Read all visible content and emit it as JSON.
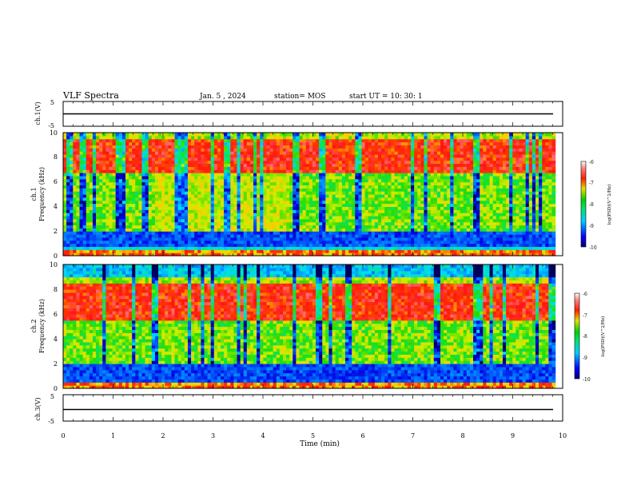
{
  "header": {
    "title": "VLF Spectra",
    "date": "Jan. 5 , 2024",
    "station": "station= MOS",
    "start_ut": "start UT =  10: 30: 1"
  },
  "chart_data": [
    {
      "type": "line",
      "panel": "ch1-waveform",
      "ylabel": "ch.1(V)",
      "ylim": [
        -5,
        5
      ],
      "y_ticks": [
        "5",
        "-5"
      ],
      "xlim": [
        0,
        10
      ],
      "level": 0
    },
    {
      "type": "heatmap",
      "panel": "ch1-spectrogram",
      "ylabel_top": "ch.1",
      "ylabel": "Frequency (kHz)",
      "ylim": [
        0,
        10
      ],
      "y_ticks": [
        "0",
        "2",
        "4",
        "6",
        "8",
        "10"
      ],
      "xlim": [
        0,
        10
      ],
      "data_end_min": 9.85,
      "colorbar": {
        "label": "log(PSD)(V^2/Hz)",
        "range": [
          -10,
          -6
        ],
        "ticks": [
          "-6",
          "-7",
          "-8",
          "-9",
          "-10"
        ]
      },
      "features": {
        "band_intense_khz": [
          6.8,
          9.5
        ],
        "green_region_min": [
          1.8,
          4.5
        ],
        "lower_bands_khz": [
          0.8,
          1.9
        ]
      }
    },
    {
      "type": "heatmap",
      "panel": "ch2-spectrogram",
      "ylabel_top": "ch.2",
      "ylabel": "Frequency (kHz)",
      "ylim": [
        0,
        10
      ],
      "y_ticks": [
        "0",
        "2",
        "4",
        "6",
        "8",
        "10"
      ],
      "xlim": [
        0,
        10
      ],
      "data_end_min": 9.85,
      "colorbar": {
        "label": "log(PSD)(V^2/Hz)",
        "range": [
          -10,
          -6
        ],
        "ticks": [
          "-6",
          "-7",
          "-8",
          "-9",
          "-10"
        ]
      },
      "features": {
        "band_intense_khz": [
          5.5,
          8.5
        ],
        "lower_bands_khz": [
          0.2,
          1.9
        ]
      }
    },
    {
      "type": "line",
      "panel": "ch3-waveform",
      "ylabel": "ch.3(V)",
      "ylim": [
        -5,
        5
      ],
      "y_ticks": [
        "5",
        "-5"
      ],
      "xlim": [
        0,
        10
      ],
      "level": 0
    }
  ],
  "x_axis": {
    "label": "Time (min)",
    "ticks": [
      "0",
      "1",
      "2",
      "3",
      "4",
      "5",
      "6",
      "7",
      "8",
      "9",
      "10"
    ]
  },
  "colors": {
    "colormap": [
      "#0000a0",
      "#0040ff",
      "#00d8ff",
      "#00e060",
      "#c8f000",
      "#ffd000",
      "#ff2000",
      "#ffffff"
    ]
  }
}
